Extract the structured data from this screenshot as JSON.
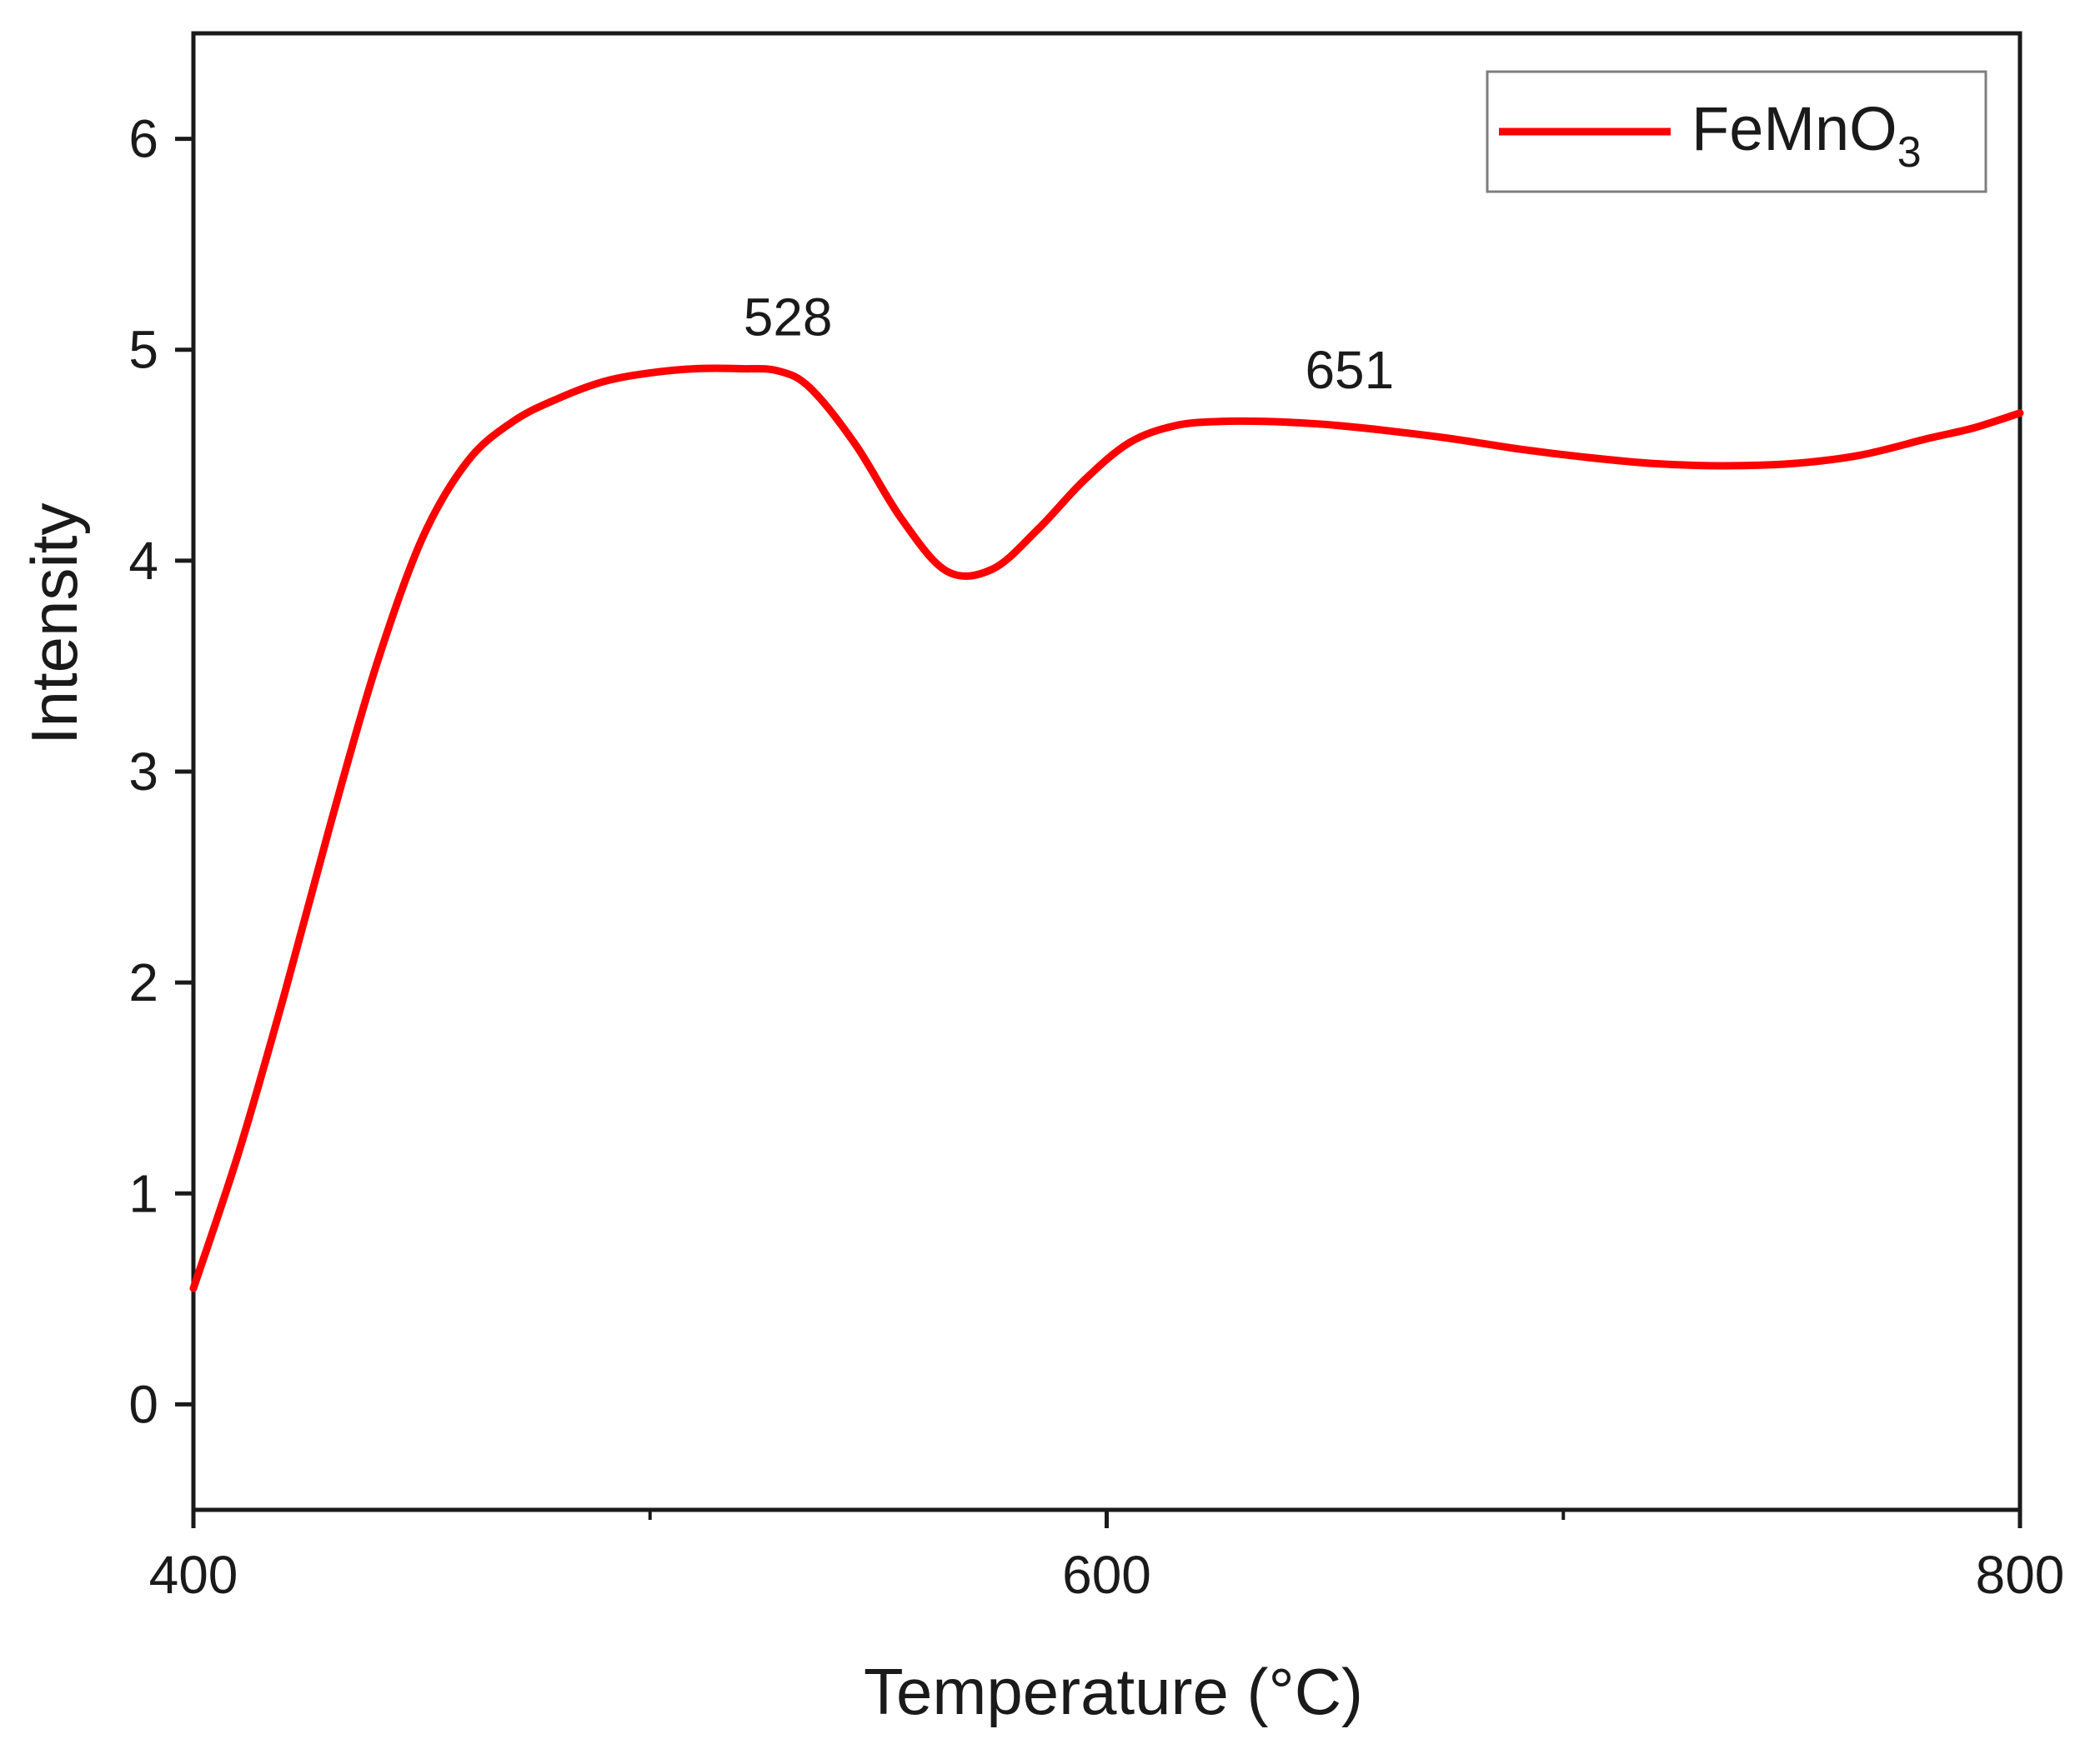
{
  "chart_data": {
    "type": "line",
    "title": "",
    "xlabel": "Temperature (°C)",
    "ylabel": "Intensity",
    "xlim": [
      400,
      800
    ],
    "ylim": [
      -0.5,
      6.5
    ],
    "x_ticks": [
      400,
      600,
      800
    ],
    "x_ticks_minor": [
      500,
      700
    ],
    "y_ticks": [
      0,
      1,
      2,
      3,
      4,
      5,
      6
    ],
    "grid": false,
    "legend_position": "top-right",
    "series": [
      {
        "name": "FeMnO3",
        "name_parts": {
          "base": "FeMnO",
          "subscript": "3"
        },
        "color": "#ff0000",
        "x": [
          400,
          410,
          420,
          430,
          440,
          450,
          460,
          470,
          480,
          490,
          500,
          510,
          520,
          528,
          535,
          545,
          555,
          565,
          575,
          585,
          595,
          605,
          615,
          625,
          635,
          645,
          651,
          660,
          675,
          690,
          705,
          720,
          735,
          750,
          765,
          780,
          790,
          800
        ],
        "y": [
          0.55,
          1.2,
          1.95,
          2.75,
          3.5,
          4.1,
          4.47,
          4.66,
          4.77,
          4.85,
          4.89,
          4.91,
          4.91,
          4.9,
          4.82,
          4.55,
          4.2,
          3.95,
          3.96,
          4.15,
          4.38,
          4.56,
          4.64,
          4.66,
          4.66,
          4.65,
          4.64,
          4.62,
          4.58,
          4.53,
          4.49,
          4.46,
          4.45,
          4.46,
          4.5,
          4.58,
          4.63,
          4.7
        ]
      }
    ],
    "annotations": [
      {
        "text": "528",
        "x": 528,
        "y": 4.91
      },
      {
        "text": "651",
        "x": 651,
        "y": 4.66
      }
    ]
  }
}
